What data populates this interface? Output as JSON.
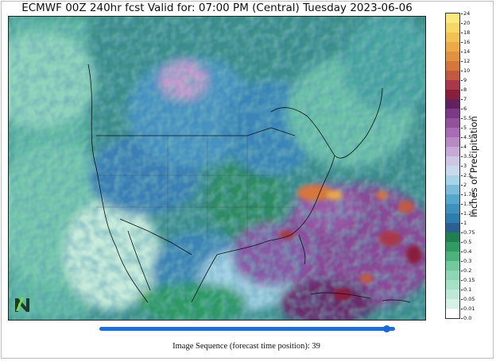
{
  "title": "ECMWF 00Z 240hr fcst Valid for: 07:00 PM (Central) Tuesday 2023-06-06",
  "map": {
    "type": "precipitation-forecast",
    "region": "North America",
    "logo_icon": "n-logo-icon"
  },
  "colorbar": {
    "label": "Inches of Precipitation",
    "ticks": [
      "0.0",
      "0.01",
      "0.05",
      "0.1",
      "0.15",
      "0.2",
      "0.3",
      "0.4",
      "0.5",
      "0.75",
      "1",
      "1.25",
      "1.5",
      "1.75",
      "2",
      "2.5",
      "3",
      "3.5",
      "4",
      "4.5",
      "5",
      "5.5",
      "6",
      "7",
      "8",
      "9",
      "10",
      "12",
      "14",
      "16",
      "18",
      "20",
      "24"
    ],
    "colors": [
      "#ffffff",
      "#d6f2e6",
      "#bfe9d7",
      "#a6e0c6",
      "#8dd6b5",
      "#72c9a0",
      "#4bb27e",
      "#2f9a63",
      "#1f7f50",
      "#2a5f8f",
      "#2f7dae",
      "#3f91bd",
      "#57a6cb",
      "#7cbcd9",
      "#a6d3e8",
      "#c8d9ee",
      "#cfc6e3",
      "#c6a9d6",
      "#b88ac4",
      "#a76cb1",
      "#93519c",
      "#7a3a85",
      "#63215f",
      "#8a1f3d",
      "#a8384a",
      "#c25a43",
      "#d5763c",
      "#e2913f",
      "#eba948",
      "#f2c154",
      "#f7d766",
      "#fbe87e"
    ]
  },
  "slider": {
    "value": 39,
    "max": 40
  },
  "sequence_caption": "Image Sequence (forecast time position): 39"
}
